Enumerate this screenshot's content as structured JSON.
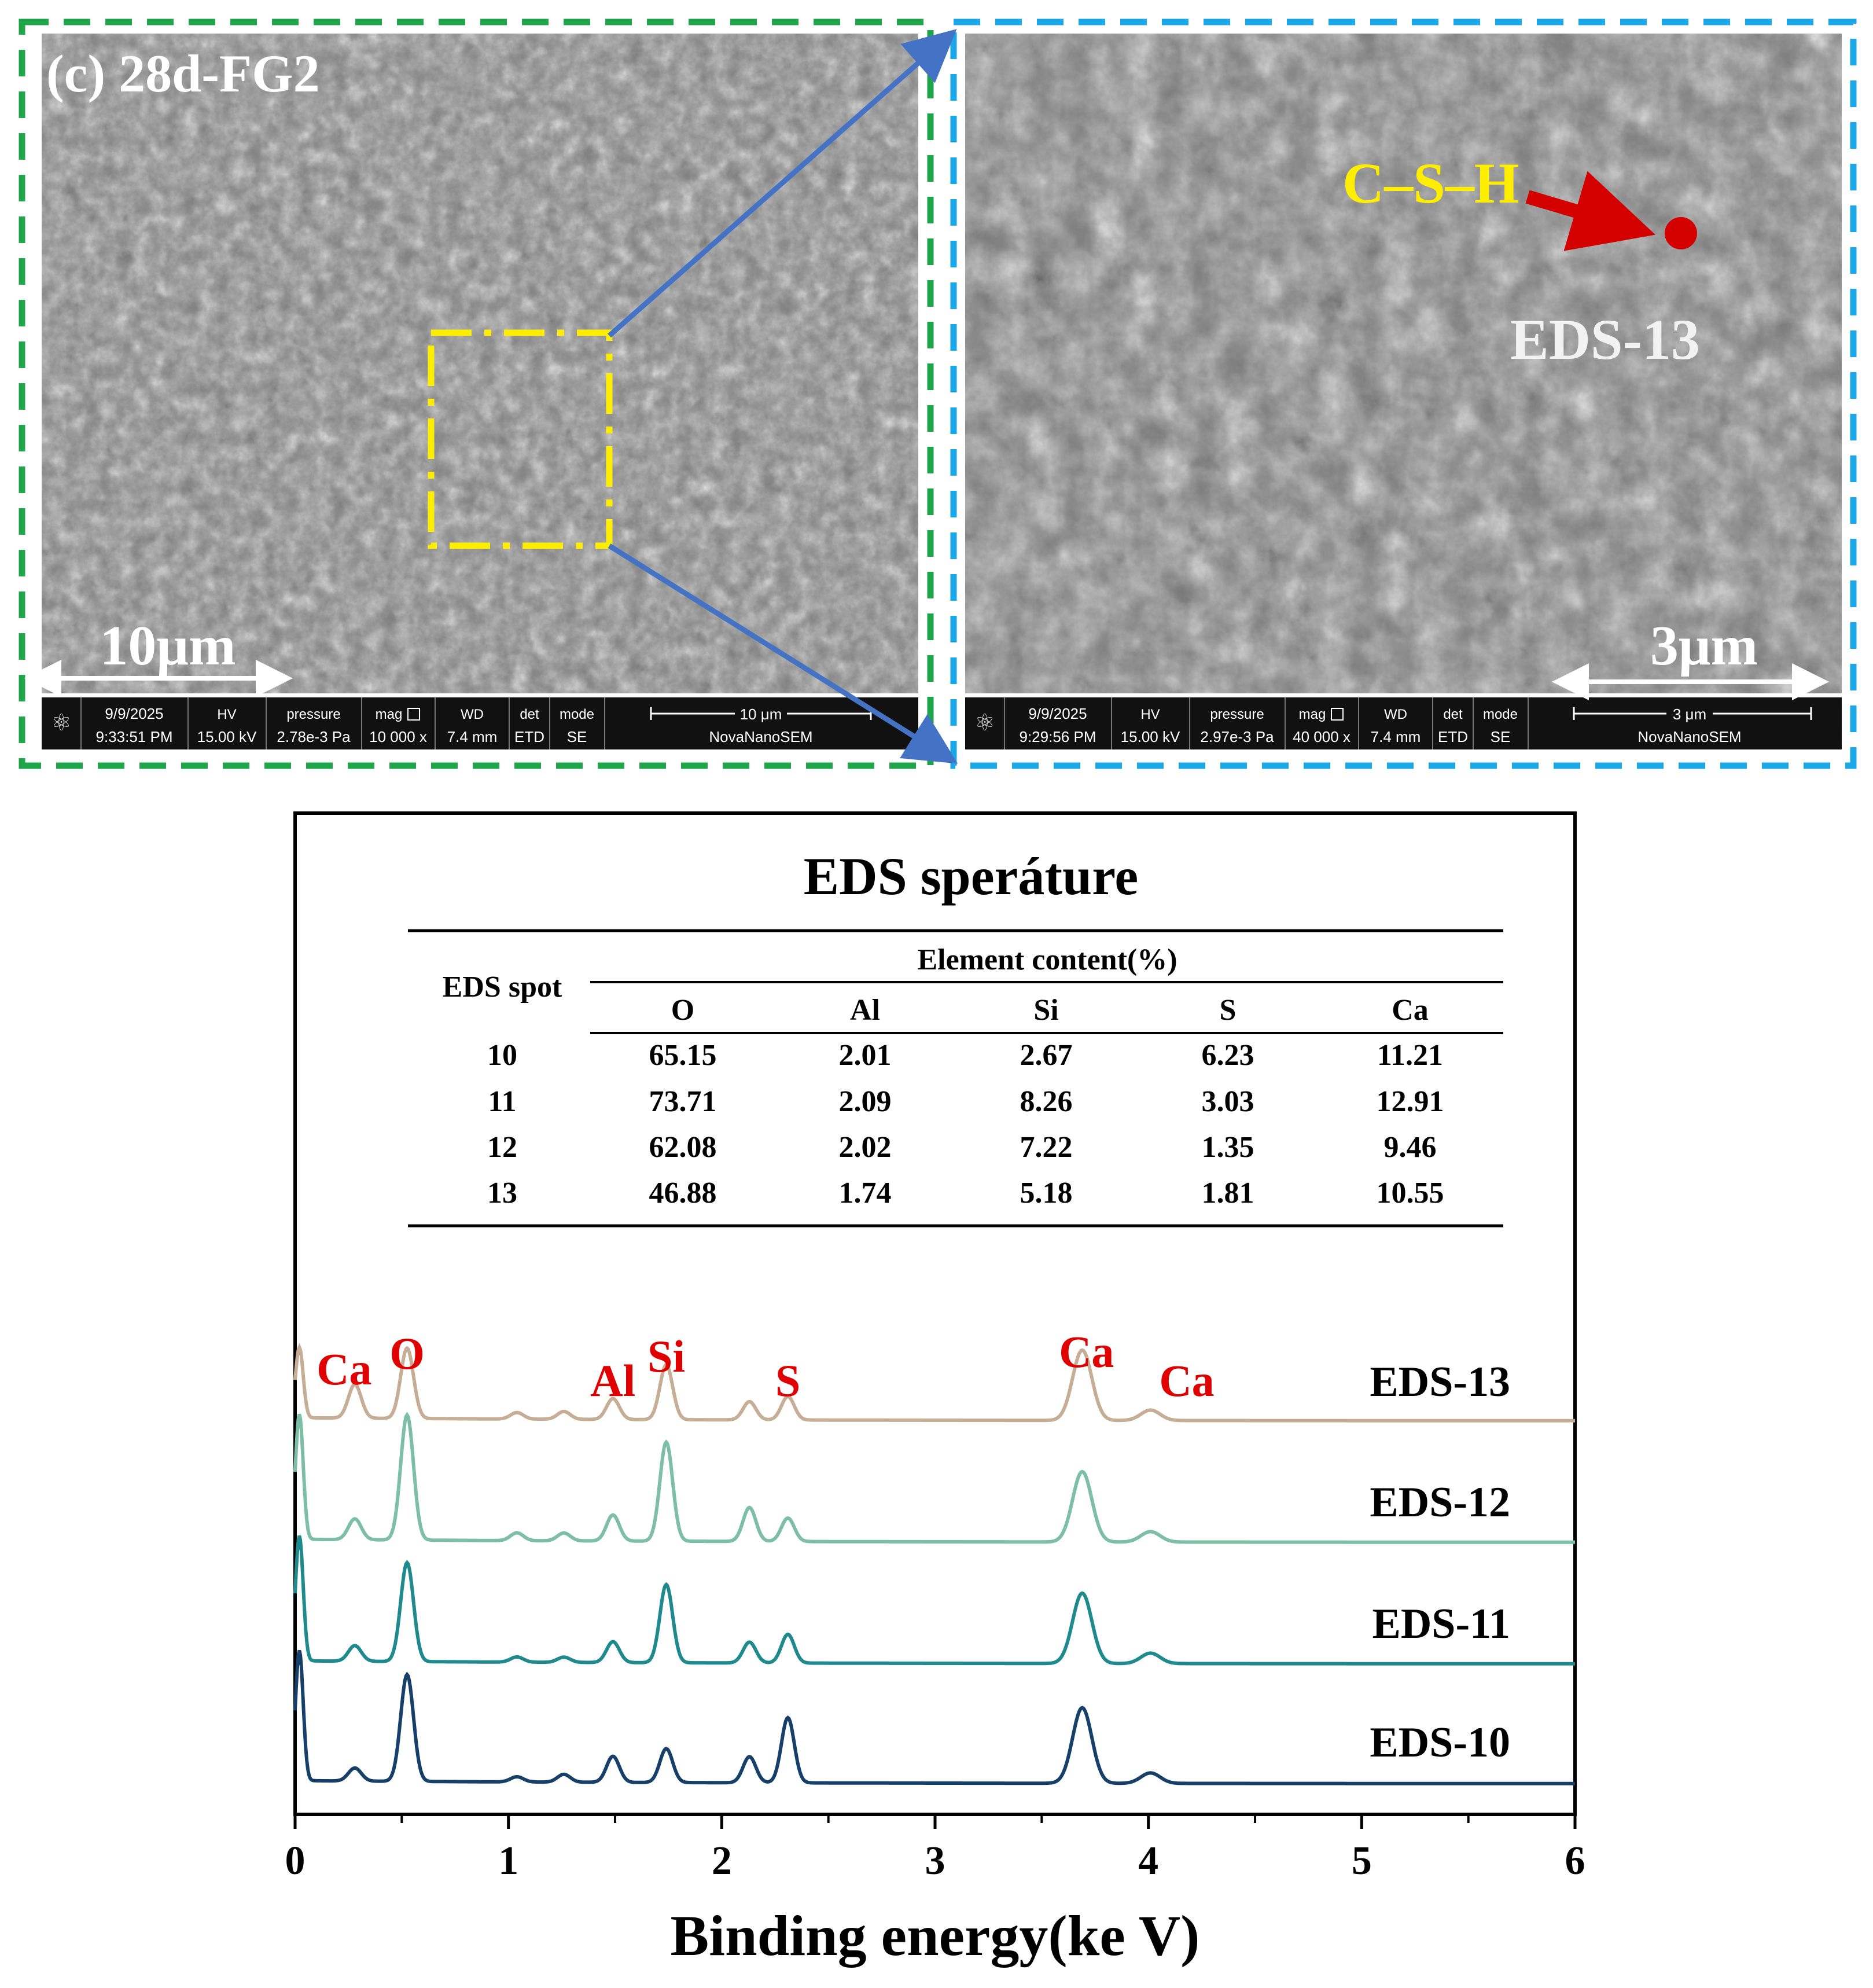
{
  "sem_left": {
    "panel_label": "(c) 28d-FG2",
    "scale_bar_label": "10μm",
    "databar": {
      "date": "9/9/2025",
      "time": "9:33:51 PM",
      "hv_header": "HV",
      "hv": "15.00 kV",
      "pressure_header": "pressure",
      "pressure": "2.78e-3 Pa",
      "mag_header": "mag",
      "mag": "10 000 x",
      "wd_header": "WD",
      "wd": "7.4 mm",
      "det_header": "det",
      "det": "ETD",
      "mode_header": "mode",
      "mode": "SE",
      "scale": "10 μm",
      "instrument": "NovaNanoSEM"
    },
    "frame_color": "#1fa64a",
    "roi_color": "#ffee00"
  },
  "sem_right": {
    "phase_label": "C–S–H",
    "spot_label": "EDS-13",
    "scale_bar_label": "3μm",
    "databar": {
      "date": "9/9/2025",
      "time": "9:29:56 PM",
      "hv_header": "HV",
      "hv": "15.00 kV",
      "pressure_header": "pressure",
      "pressure": "2.97e-3 Pa",
      "mag_header": "mag",
      "mag": "40 000 x",
      "wd_header": "WD",
      "wd": "7.4 mm",
      "det_header": "det",
      "det": "ETD",
      "mode_header": "mode",
      "mode": "SE",
      "scale": "3 μm",
      "instrument": "NovaNanoSEM"
    },
    "frame_color": "#1aa8e8",
    "marker_color": "#d40000",
    "phase_label_color": "#ffee00"
  },
  "zoom_arrow_color": "#4472c4",
  "eds_table": {
    "title": "EDS speráture",
    "spot_header": "EDS spot",
    "group_header": "Element content(%)",
    "columns": [
      "O",
      "Al",
      "Si",
      "S",
      "Ca"
    ],
    "rows": [
      {
        "spot": "10",
        "values": [
          "65.15",
          "2.01",
          "2.67",
          "6.23",
          "11.21"
        ]
      },
      {
        "spot": "11",
        "values": [
          "73.71",
          "2.09",
          "8.26",
          "3.03",
          "12.91"
        ]
      },
      {
        "spot": "12",
        "values": [
          "62.08",
          "2.02",
          "7.22",
          "1.35",
          "9.46"
        ]
      },
      {
        "spot": "13",
        "values": [
          "46.88",
          "1.74",
          "5.18",
          "1.81",
          "10.55"
        ]
      }
    ]
  },
  "chart_data": {
    "type": "line",
    "title": "",
    "xlabel": "Binding energy(ke V)",
    "ylabel": "",
    "xlim": [
      0,
      6
    ],
    "x_ticks": [
      "0",
      "1",
      "2",
      "3",
      "4",
      "5",
      "6"
    ],
    "grid": false,
    "legend": "labels at right end of each stacked trace",
    "peaks": [
      {
        "label": "Ca",
        "x": 0.28
      },
      {
        "label": "O",
        "x": 0.525
      },
      {
        "label": "Al",
        "x": 1.49
      },
      {
        "label": "Si",
        "x": 1.74
      },
      {
        "label": "S",
        "x": 2.31
      },
      {
        "label": "Ca",
        "x": 3.69
      },
      {
        "label": "Ca",
        "x": 4.01
      }
    ],
    "peak_label_color": "#e00000",
    "series": [
      {
        "name": "EDS-13",
        "color": "#c6ae96",
        "peaks": [
          {
            "x": 0.02,
            "h": 0.27
          },
          {
            "x": 0.28,
            "h": 0.13
          },
          {
            "x": 0.525,
            "h": 0.27
          },
          {
            "x": 1.04,
            "h": 0.025
          },
          {
            "x": 1.26,
            "h": 0.03
          },
          {
            "x": 1.49,
            "h": 0.08
          },
          {
            "x": 1.74,
            "h": 0.21
          },
          {
            "x": 2.13,
            "h": 0.07
          },
          {
            "x": 2.31,
            "h": 0.09
          },
          {
            "x": 3.69,
            "h": 0.27
          },
          {
            "x": 4.01,
            "h": 0.04
          }
        ]
      },
      {
        "name": "EDS-12",
        "color": "#7cbea6",
        "peaks": [
          {
            "x": 0.02,
            "h": 0.48
          },
          {
            "x": 0.28,
            "h": 0.08
          },
          {
            "x": 0.525,
            "h": 0.48
          },
          {
            "x": 1.04,
            "h": 0.03
          },
          {
            "x": 1.26,
            "h": 0.03
          },
          {
            "x": 1.49,
            "h": 0.1
          },
          {
            "x": 1.74,
            "h": 0.38
          },
          {
            "x": 2.13,
            "h": 0.13
          },
          {
            "x": 2.31,
            "h": 0.09
          },
          {
            "x": 3.69,
            "h": 0.27
          },
          {
            "x": 4.01,
            "h": 0.04
          }
        ]
      },
      {
        "name": "EDS-11",
        "color": "#1f8a8e",
        "peaks": [
          {
            "x": 0.02,
            "h": 0.48
          },
          {
            "x": 0.28,
            "h": 0.06
          },
          {
            "x": 0.525,
            "h": 0.38
          },
          {
            "x": 1.04,
            "h": 0.02
          },
          {
            "x": 1.26,
            "h": 0.02
          },
          {
            "x": 1.49,
            "h": 0.08
          },
          {
            "x": 1.74,
            "h": 0.3
          },
          {
            "x": 2.13,
            "h": 0.08
          },
          {
            "x": 2.31,
            "h": 0.11
          },
          {
            "x": 3.69,
            "h": 0.27
          },
          {
            "x": 4.01,
            "h": 0.04
          }
        ]
      },
      {
        "name": "EDS-10",
        "color": "#163f6a",
        "peaks": [
          {
            "x": 0.02,
            "h": 0.5
          },
          {
            "x": 0.28,
            "h": 0.05
          },
          {
            "x": 0.525,
            "h": 0.41
          },
          {
            "x": 1.04,
            "h": 0.02
          },
          {
            "x": 1.26,
            "h": 0.03
          },
          {
            "x": 1.49,
            "h": 0.1
          },
          {
            "x": 1.74,
            "h": 0.13
          },
          {
            "x": 2.13,
            "h": 0.1
          },
          {
            "x": 2.31,
            "h": 0.25
          },
          {
            "x": 3.69,
            "h": 0.29
          },
          {
            "x": 4.01,
            "h": 0.04
          }
        ]
      }
    ]
  }
}
